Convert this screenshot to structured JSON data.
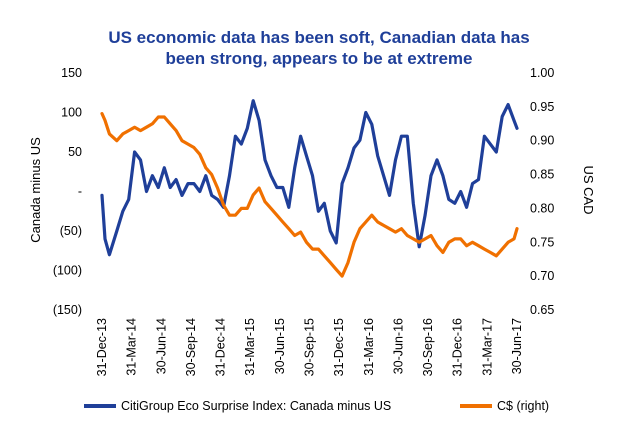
{
  "chart_data": {
    "type": "line",
    "title_line1": "US economic data has been soft, Canadian data has",
    "title_line2": "been strong, appears to be at extreme",
    "ylabel_left": "Canada minus US",
    "ylabel_right": "US CAD",
    "x_tick_labels": [
      "31-Dec-13",
      "31-Mar-14",
      "30-Jun-14",
      "30-Sep-14",
      "31-Dec-14",
      "31-Mar-15",
      "30-Jun-15",
      "30-Sep-15",
      "31-Dec-15",
      "31-Mar-16",
      "30-Jun-16",
      "30-Sep-16",
      "31-Dec-16",
      "31-Mar-17",
      "30-Jun-17"
    ],
    "y_left_ticks": [
      "150",
      "100",
      "50",
      "-",
      "(50)",
      "(100)",
      "(150)"
    ],
    "y_left_values": [
      150,
      100,
      50,
      0,
      -50,
      -100,
      -150
    ],
    "ylim_left": [
      -150,
      150
    ],
    "y_right_ticks": [
      "1.00",
      "0.95",
      "0.90",
      "0.85",
      "0.80",
      "0.75",
      "0.70",
      "0.65"
    ],
    "y_right_values": [
      1.0,
      0.95,
      0.9,
      0.85,
      0.8,
      0.75,
      0.7,
      0.65
    ],
    "ylim_right": [
      0.65,
      1.0
    ],
    "x_index_range": [
      0,
      14
    ],
    "series": [
      {
        "name": "CitiGroup Eco Surprise Index: Canada minus US",
        "axis": "left",
        "color": "#1f3f99",
        "x": [
          0,
          0.1,
          0.25,
          0.5,
          0.7,
          0.9,
          1.1,
          1.3,
          1.5,
          1.7,
          1.9,
          2.1,
          2.3,
          2.5,
          2.7,
          2.9,
          3.1,
          3.3,
          3.5,
          3.7,
          3.9,
          4.1,
          4.3,
          4.5,
          4.7,
          4.9,
          5.1,
          5.3,
          5.5,
          5.7,
          5.9,
          6.1,
          6.3,
          6.5,
          6.7,
          6.9,
          7.1,
          7.3,
          7.5,
          7.7,
          7.9,
          8.1,
          8.3,
          8.5,
          8.7,
          8.9,
          9.1,
          9.3,
          9.5,
          9.7,
          9.9,
          10.1,
          10.3,
          10.5,
          10.7,
          10.9,
          11.1,
          11.3,
          11.5,
          11.7,
          11.9,
          12.1,
          12.3,
          12.5,
          12.7,
          12.9,
          13.1,
          13.3,
          13.5,
          13.7,
          13.9,
          14.0
        ],
        "y": [
          -5,
          -60,
          -80,
          -50,
          -25,
          -10,
          50,
          40,
          0,
          20,
          5,
          30,
          5,
          15,
          -5,
          10,
          10,
          0,
          20,
          -5,
          -10,
          -20,
          20,
          70,
          60,
          80,
          115,
          90,
          40,
          20,
          5,
          5,
          -20,
          30,
          70,
          45,
          20,
          -25,
          -15,
          -50,
          -65,
          10,
          30,
          55,
          65,
          100,
          85,
          45,
          20,
          -5,
          40,
          70,
          70,
          -15,
          -70,
          -30,
          20,
          40,
          20,
          -10,
          -15,
          0,
          -20,
          10,
          15,
          70,
          60,
          50,
          95,
          110,
          90,
          80
        ]
      },
      {
        "name": "C$ (right)",
        "axis": "right",
        "color": "#f07000",
        "x": [
          0,
          0.1,
          0.25,
          0.5,
          0.7,
          0.9,
          1.1,
          1.3,
          1.5,
          1.7,
          1.9,
          2.1,
          2.3,
          2.5,
          2.7,
          2.9,
          3.1,
          3.3,
          3.5,
          3.7,
          3.9,
          4.1,
          4.3,
          4.5,
          4.7,
          4.9,
          5.1,
          5.3,
          5.5,
          5.7,
          5.9,
          6.1,
          6.3,
          6.5,
          6.7,
          6.9,
          7.1,
          7.3,
          7.5,
          7.7,
          7.9,
          8.1,
          8.3,
          8.5,
          8.7,
          8.9,
          9.1,
          9.3,
          9.5,
          9.7,
          9.9,
          10.1,
          10.3,
          10.5,
          10.7,
          10.9,
          11.1,
          11.3,
          11.5,
          11.7,
          11.9,
          12.1,
          12.3,
          12.5,
          12.7,
          12.9,
          13.1,
          13.3,
          13.5,
          13.7,
          13.9,
          14.0
        ],
        "y": [
          0.94,
          0.93,
          0.91,
          0.9,
          0.91,
          0.915,
          0.92,
          0.915,
          0.92,
          0.925,
          0.935,
          0.935,
          0.925,
          0.915,
          0.9,
          0.895,
          0.89,
          0.88,
          0.86,
          0.85,
          0.83,
          0.805,
          0.79,
          0.79,
          0.8,
          0.8,
          0.82,
          0.83,
          0.81,
          0.8,
          0.79,
          0.78,
          0.77,
          0.76,
          0.765,
          0.75,
          0.74,
          0.74,
          0.73,
          0.72,
          0.71,
          0.7,
          0.72,
          0.75,
          0.77,
          0.78,
          0.79,
          0.78,
          0.775,
          0.77,
          0.765,
          0.77,
          0.76,
          0.755,
          0.75,
          0.755,
          0.76,
          0.745,
          0.735,
          0.75,
          0.755,
          0.755,
          0.745,
          0.75,
          0.745,
          0.74,
          0.735,
          0.73,
          0.74,
          0.75,
          0.755,
          0.77
        ]
      }
    ],
    "legend_position": "bottom",
    "grid": false
  }
}
